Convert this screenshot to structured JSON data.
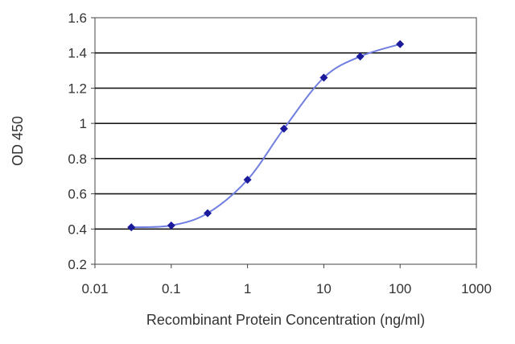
{
  "chart_data": {
    "type": "line",
    "xlabel": "Recombinant Protein Concentration (ng/ml)",
    "ylabel": "OD 450",
    "xscale": "log",
    "xlim": [
      0.01,
      1000
    ],
    "ylim": [
      0.2,
      1.6
    ],
    "x_ticks": [
      0.01,
      0.1,
      1,
      10,
      100,
      1000
    ],
    "x_tick_labels": [
      "0.01",
      "0.1",
      "1",
      "10",
      "100",
      "1000"
    ],
    "y_ticks": [
      0.2,
      0.4,
      0.6,
      0.8,
      1.0,
      1.2,
      1.4,
      1.6
    ],
    "y_tick_labels": [
      "0.2",
      "0.4",
      "0.6",
      "0.8",
      "1",
      "1.2",
      "1.4",
      "1.6"
    ],
    "grid": "horizontal",
    "series": [
      {
        "x": [
          0.03,
          0.1,
          0.3,
          1,
          3,
          10,
          30,
          100
        ],
        "y": [
          0.41,
          0.42,
          0.49,
          0.68,
          0.97,
          1.26,
          1.38,
          1.45
        ]
      }
    ],
    "colors": {
      "line": "#6f7ee0",
      "marker": "#1a1a9a",
      "grid": "#1a1a1a",
      "frame": "#444444",
      "plot_bg": "#ffffff"
    }
  }
}
